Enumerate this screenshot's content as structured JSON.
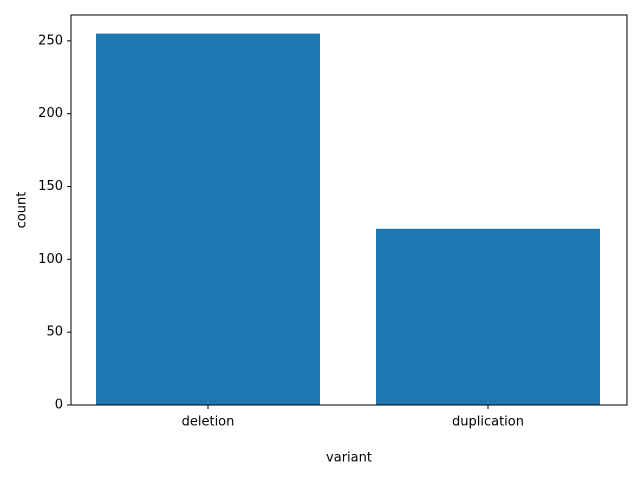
{
  "chart_data": {
    "type": "bar",
    "categories": [
      "deletion",
      "duplication"
    ],
    "values": [
      255,
      121
    ],
    "color": "#1f77b4",
    "xlabel": "variant",
    "ylabel": "count",
    "ylim": [
      0,
      267.75
    ],
    "yticks": [
      0,
      50,
      100,
      150,
      200,
      250
    ],
    "grid": false
  }
}
